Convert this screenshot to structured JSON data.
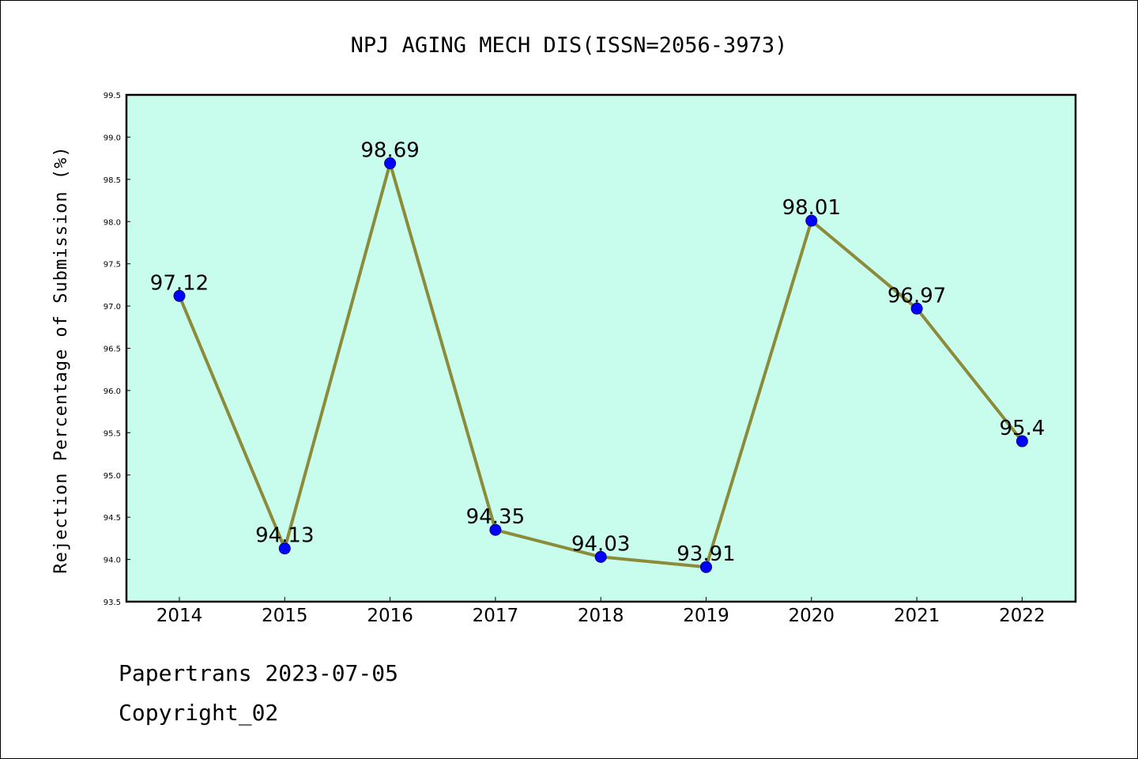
{
  "chart_data": {
    "type": "line",
    "title": "NPJ AGING MECH DIS(ISSN=2056-3973)",
    "xlabel": "",
    "ylabel": "Rejection Percentage of Submission (%)",
    "categories": [
      "2014",
      "2015",
      "2016",
      "2017",
      "2018",
      "2019",
      "2020",
      "2021",
      "2022"
    ],
    "values": [
      97.12,
      94.13,
      98.69,
      94.35,
      94.03,
      93.91,
      98.01,
      96.97,
      95.4
    ],
    "data_labels": [
      "97.12",
      "94.13",
      "98.69",
      "94.35",
      "94.03",
      "93.91",
      "98.01",
      "96.97",
      "95.4"
    ],
    "ylim": [
      93.5,
      99.5
    ],
    "yticks": [
      "93.5",
      "94.0",
      "94.5",
      "95.0",
      "95.5",
      "96.0",
      "96.5",
      "97.0",
      "97.5",
      "98.0",
      "98.5",
      "99.0",
      "99.5"
    ],
    "grid": false,
    "legend": "none",
    "colors": {
      "plot_background": "#c8fcec",
      "line": "#8b8b3a",
      "marker": "#0000ff",
      "marker_edge": "#000080"
    }
  },
  "footer": {
    "line1": "Papertrans 2023-07-05",
    "line2": "Copyright_02"
  }
}
